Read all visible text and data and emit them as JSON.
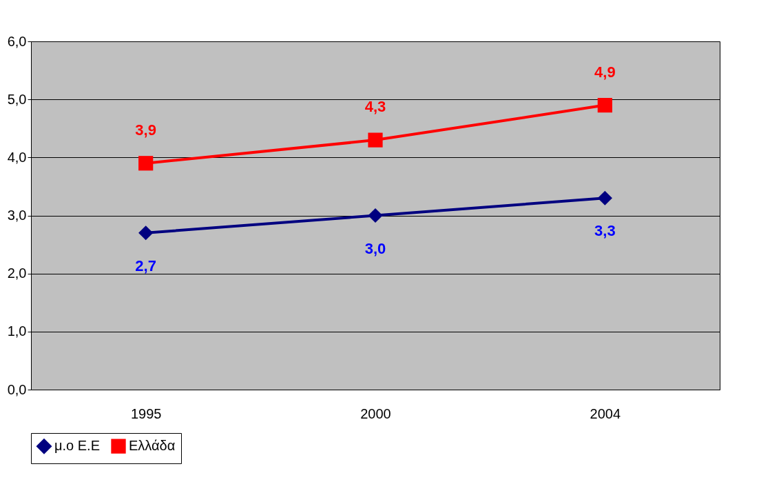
{
  "chart_data": {
    "type": "line",
    "categories": [
      "1995",
      "2000",
      "2004"
    ],
    "series": [
      {
        "name": "μ.ο Ε.Ε",
        "color": "#000080",
        "marker": "diamond",
        "values": [
          2.7,
          3.0,
          3.3
        ],
        "value_labels": [
          "2,7",
          "3,0",
          "3,3"
        ]
      },
      {
        "name": "Ελλάδα",
        "color": "#ff0000",
        "marker": "square",
        "values": [
          3.9,
          4.3,
          4.9
        ],
        "value_labels": [
          "3,9",
          "4,3",
          "4,9"
        ]
      }
    ],
    "ylim": [
      0,
      6
    ],
    "yticks": [
      {
        "value": 0,
        "label": "0,0"
      },
      {
        "value": 1,
        "label": "1,0"
      },
      {
        "value": 2,
        "label": "2,0"
      },
      {
        "value": 3,
        "label": "3,0"
      },
      {
        "value": 4,
        "label": "4,0"
      },
      {
        "value": 5,
        "label": "5,0"
      },
      {
        "value": 6,
        "label": "6,0"
      }
    ],
    "grid": "y",
    "legend": "bottom"
  }
}
